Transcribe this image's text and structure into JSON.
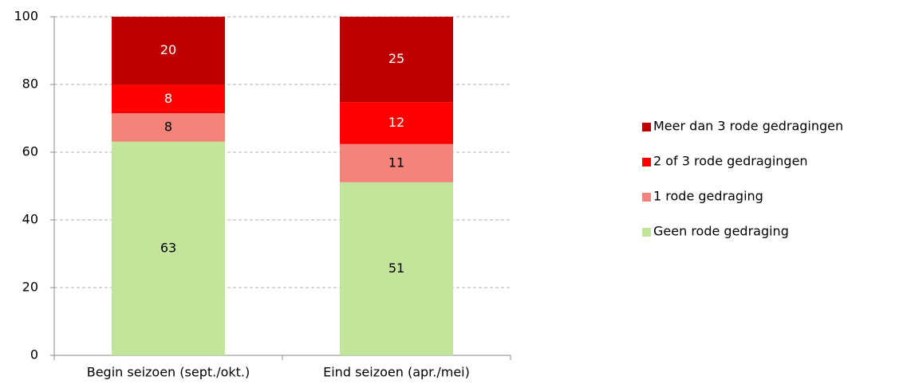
{
  "chart_data": {
    "type": "stacked_bar",
    "categories": [
      "Begin seizoen (sept./okt.)",
      "Eind seizoen (apr./mei)"
    ],
    "series": [
      {
        "name": "Geen rode gedraging",
        "color": "#c3e59b",
        "label_color": "#000000",
        "values": [
          63.1,
          51.1
        ],
        "value_labels": [
          "63",
          "51"
        ]
      },
      {
        "name": "1 rode gedraging",
        "color": "#f4837a",
        "label_color": "#000000",
        "values": [
          8.4,
          11.3
        ],
        "value_labels": [
          "8",
          "11"
        ]
      },
      {
        "name": "2 of 3 rode gedragingen",
        "color": "#ff0000",
        "label_color": "#ffffff",
        "values": [
          8.4,
          12.4
        ],
        "value_labels": [
          "8",
          "12"
        ]
      },
      {
        "name": "Meer dan 3 rode gedragingen",
        "color": "#c00000",
        "label_color": "#ffffff",
        "values": [
          20.1,
          25.2
        ],
        "value_labels": [
          "20",
          "25"
        ]
      }
    ],
    "ylim": [
      0,
      100
    ],
    "yticks": [
      0,
      20,
      40,
      60,
      80,
      100
    ],
    "grid": true,
    "legend": "right"
  }
}
